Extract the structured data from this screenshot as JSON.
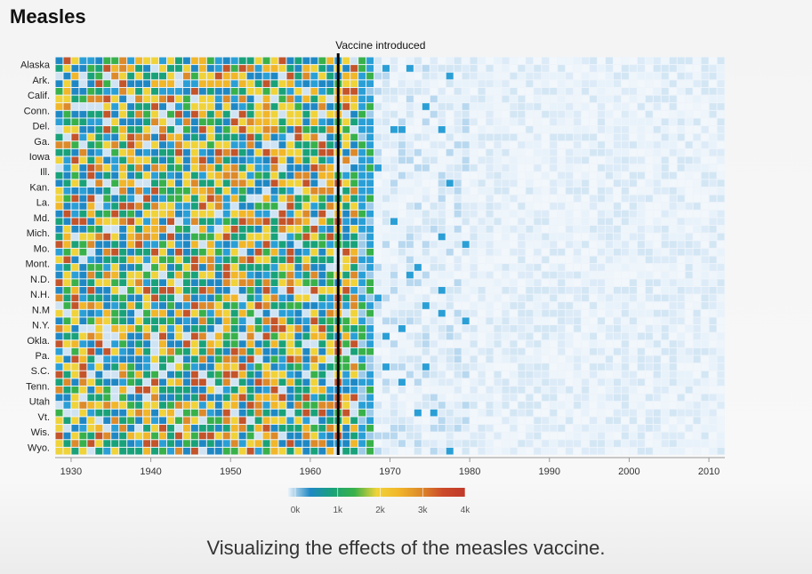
{
  "title": "Measles",
  "caption": "Visualizing the effects of the measles vaccine.",
  "chart_data": {
    "type": "heatmap",
    "x_range": [
      1928,
      2012
    ],
    "x_ticks": [
      1930,
      1940,
      1950,
      1960,
      1970,
      1980,
      1990,
      2000,
      2010
    ],
    "y_labels": [
      "Alaska",
      "Ark.",
      "Calif.",
      "Conn.",
      "Del.",
      "Ga.",
      "Iowa",
      "Ill.",
      "Kan.",
      "La.",
      "Md.",
      "Mich.",
      "Mo.",
      "Mont.",
      "N.D.",
      "N.H.",
      "N.M",
      "N.Y.",
      "Okla.",
      "Pa.",
      "S.C.",
      "Tenn.",
      "Utah",
      "Vt.",
      "Wis.",
      "Wyo."
    ],
    "rows_per_label": 2,
    "annotation": {
      "year": 1963,
      "label": "Vaccine introduced"
    },
    "legend": {
      "ticks": [
        "0k",
        "1k",
        "2k",
        "3k",
        "4k"
      ],
      "colors": [
        "#e8f2fa",
        "#1f88c4",
        "#19a279",
        "#39b14a",
        "#f0d33a",
        "#f1b62a",
        "#dd8a2a",
        "#cc4a2a",
        "#c0392b"
      ]
    },
    "grid": true
  }
}
